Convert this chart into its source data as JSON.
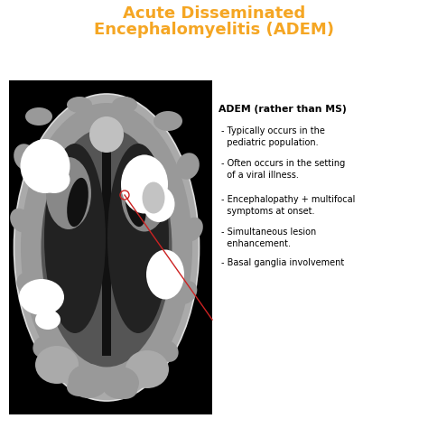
{
  "title_line1": "Acute Disseminated",
  "title_line2": "Encephalomyelitis (ADEM)",
  "title_color": "#F5A623",
  "bg_color": "#FFFFFF",
  "annotation_header": "ADEM (rather than MS)",
  "annotations": [
    "- Typically occurs in the\n  pediatric population.",
    "- Often occurs in the setting\n  of a viral illness.",
    "- Encephalopathy + multifocal\n  symptoms at onset.",
    "- Simultaneous lesion\n  enhancement.",
    "- Basal ganglia involvement"
  ],
  "arrow_color": "#CC2222",
  "brain_bg": "#000000",
  "col_outer": "#BBBBBB",
  "col_mid": "#999999",
  "col_dark": "#444444",
  "col_darker": "#222222",
  "col_white": "#FFFFFF",
  "col_light": "#DDDDDD",
  "col_medium": "#888888"
}
